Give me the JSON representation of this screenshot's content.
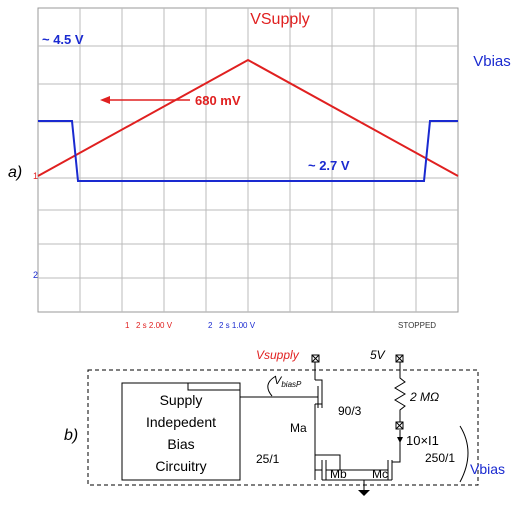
{
  "panel_a": {
    "label": "a)",
    "title": "VSupply",
    "legend": "Vbias",
    "annotations": [
      "~ 4.5 V",
      "680 mV",
      "~ 2.7 V"
    ],
    "channel_markers": [
      "1",
      "2"
    ],
    "status": {
      "ch1": "1",
      "ch1_settings": "2 s 2.00 V",
      "ch2": "2",
      "ch2_settings": "2 s 1.00 V",
      "state": "STOPPED"
    }
  },
  "panel_b": {
    "label": "b)",
    "vsupply": "Vsupply",
    "five_volt": "5V",
    "vbiasp": {
      "main": "V",
      "sub": "biasP"
    },
    "ma_size": "90/3",
    "resistor": "2 MΩ",
    "block": [
      "Supply",
      "Indepedent",
      "Bias",
      "Circuitry"
    ],
    "ma": "Ma",
    "current": "10×I1",
    "mc_size": "250/1",
    "mb_size": "25/1",
    "mb": "Mb",
    "mc": "Mc",
    "vbias": "Vbias"
  }
}
